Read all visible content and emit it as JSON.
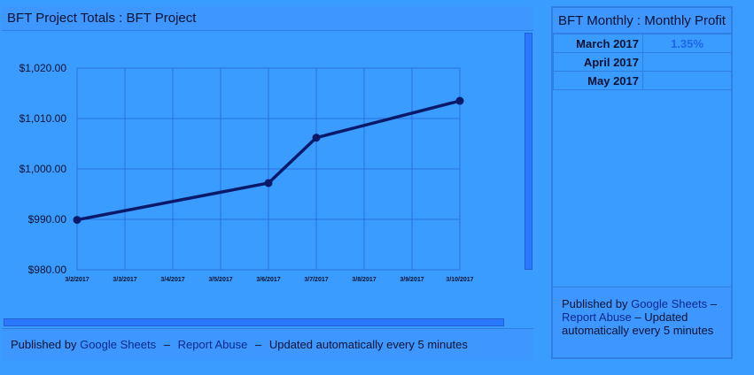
{
  "left_panel": {
    "title": "BFT Project Totals : BFT Project",
    "footer": {
      "prefix": "Published by",
      "link1": "Google Sheets",
      "sep": "–",
      "link2": "Report Abuse",
      "suffix": "Updated automatically every 5 minutes"
    }
  },
  "right_panel": {
    "title": "BFT Monthly : Monthly Profit",
    "rows": [
      {
        "month": "March 2017",
        "value": "1.35%"
      },
      {
        "month": "April 2017",
        "value": ""
      },
      {
        "month": "May 2017",
        "value": ""
      }
    ],
    "footer": {
      "prefix": "Published by",
      "link1": "Google Sheets",
      "sep": "–",
      "link2": "Report Abuse",
      "suffix": "Updated automatically every 5 minutes"
    }
  },
  "colors": {
    "line": "#0a1a6a",
    "grid": "#2a6fe0",
    "background": "#3a9cff"
  },
  "chart_data": {
    "type": "line",
    "x_ticks": [
      "3/2/2017",
      "3/3/2017",
      "3/4/2017",
      "3/5/2017",
      "3/6/2017",
      "3/7/2017",
      "3/8/2017",
      "3/9/2017",
      "3/10/2017"
    ],
    "y_ticks": [
      "$980.00",
      "$990.00",
      "$1,000.00",
      "$1,010.00",
      "$1,020.00"
    ],
    "ylim": [
      980,
      1020
    ],
    "grid": true,
    "series": [
      {
        "points": [
          {
            "x": "3/2/2017",
            "y": 989.9
          },
          {
            "x": "3/6/2017",
            "y": 997.2
          },
          {
            "x": "3/7/2017",
            "y": 1006.2
          },
          {
            "x": "3/10/2017",
            "y": 1013.5
          }
        ]
      }
    ]
  }
}
